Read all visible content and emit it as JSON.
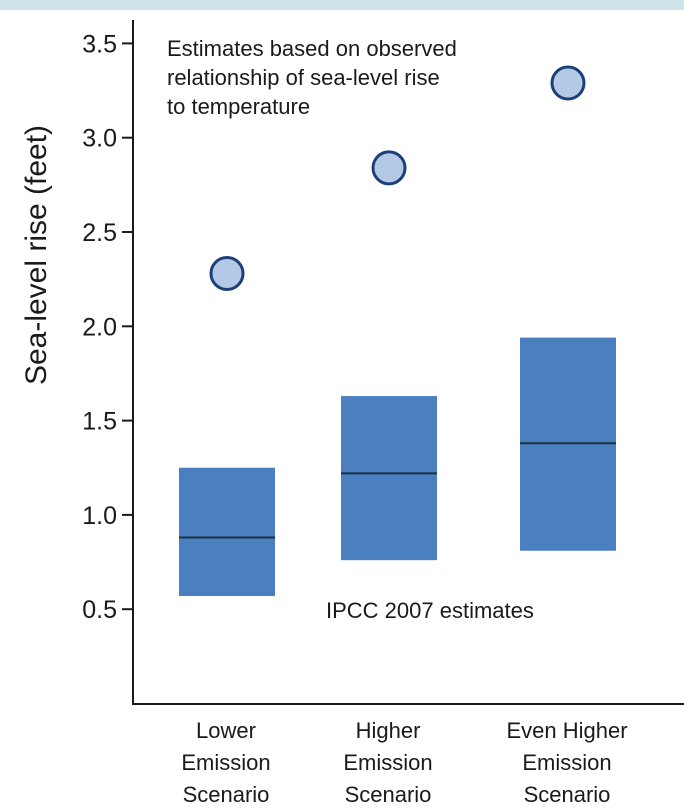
{
  "colors": {
    "top_strip": "#cfe3ea",
    "box_fill": "#4a7fc0",
    "median_line": "#1f2f45",
    "marker_fill": "#b3c9e6",
    "marker_stroke": "#1d3f7a",
    "axis": "#1a1a1a"
  },
  "chart_data": {
    "type": "box",
    "ylabel": "Sea-level rise (feet)",
    "ylim": [
      0,
      3.6
    ],
    "yticks": [
      "0.5",
      "1.0",
      "1.5",
      "2.0",
      "2.5",
      "3.0",
      "3.5"
    ],
    "grid": false,
    "categories": [
      [
        "Lower",
        "Emission",
        "Scenario"
      ],
      [
        "Higher",
        "Emission",
        "Scenario"
      ],
      [
        "Even Higher",
        "Emission",
        "Scenario"
      ]
    ],
    "series": [
      {
        "name": "IPCC 2007 estimates",
        "ranges": [
          {
            "low": 0.57,
            "median": 0.88,
            "high": 1.25
          },
          {
            "low": 0.76,
            "median": 1.22,
            "high": 1.63
          },
          {
            "low": 0.81,
            "median": 1.38,
            "high": 1.94
          }
        ]
      },
      {
        "name": "Estimates based on observed relationship of sea-level rise to temperature",
        "values": [
          2.28,
          2.84,
          3.29
        ]
      }
    ],
    "annotations": [
      {
        "lines": [
          "Estimates based on observed",
          "relationship of sea-level rise",
          "to temperature"
        ]
      },
      {
        "lines": [
          "IPCC 2007 estimates"
        ]
      }
    ]
  }
}
